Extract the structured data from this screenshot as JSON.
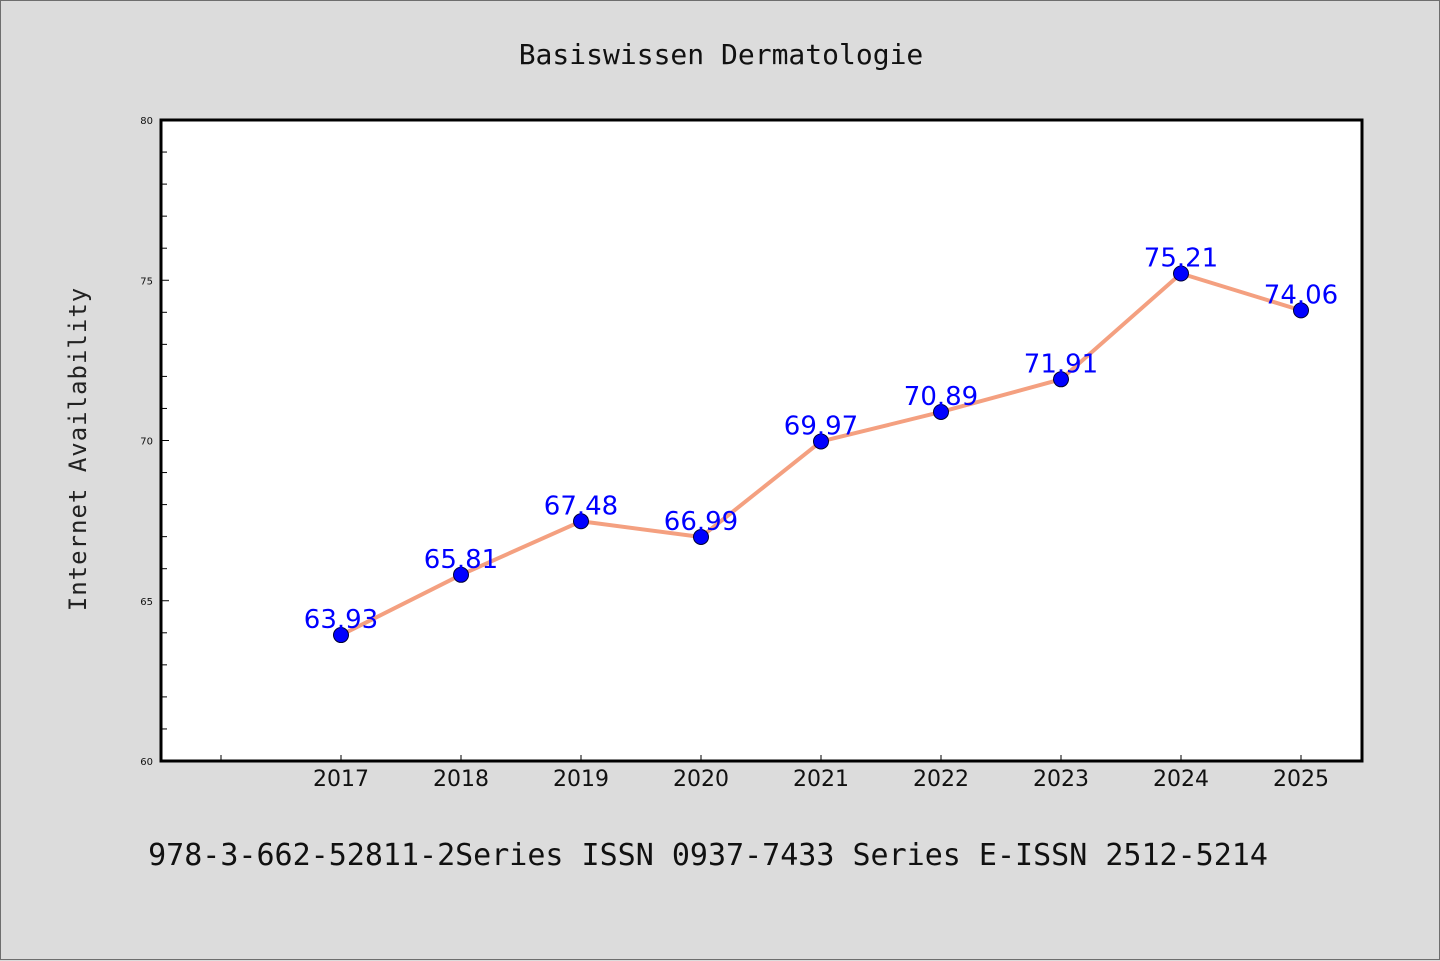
{
  "footer": "978-3-662-52811-2Series ISSN 0937-7433 Series E-ISSN 2512-5214",
  "colors": {
    "background": "#dcdcdc",
    "plot_background": "#ffffff",
    "line": "#f4a080",
    "marker": "#0000ff",
    "data_label": "#0000ff"
  },
  "chart_data": {
    "type": "line",
    "title": "Basiswissen Dermatologie",
    "xlabel": "",
    "ylabel": "Internet Availability",
    "categories": [
      "2017",
      "2018",
      "2019",
      "2020",
      "2021",
      "2022",
      "2023",
      "2024",
      "2025"
    ],
    "series": [
      {
        "values": [
          63.93,
          65.81,
          67.48,
          66.99,
          69.97,
          70.89,
          71.91,
          75.21,
          74.06
        ],
        "labels": [
          "63.93",
          "65.81",
          "67.48",
          "66.99",
          "69.97",
          "70.89",
          "71.91",
          "75.21",
          "74.06"
        ]
      }
    ],
    "ylim": [
      60,
      80
    ],
    "yticks": [
      "60",
      "65",
      "70",
      "75",
      "80"
    ],
    "grid": false,
    "legend": "none"
  }
}
